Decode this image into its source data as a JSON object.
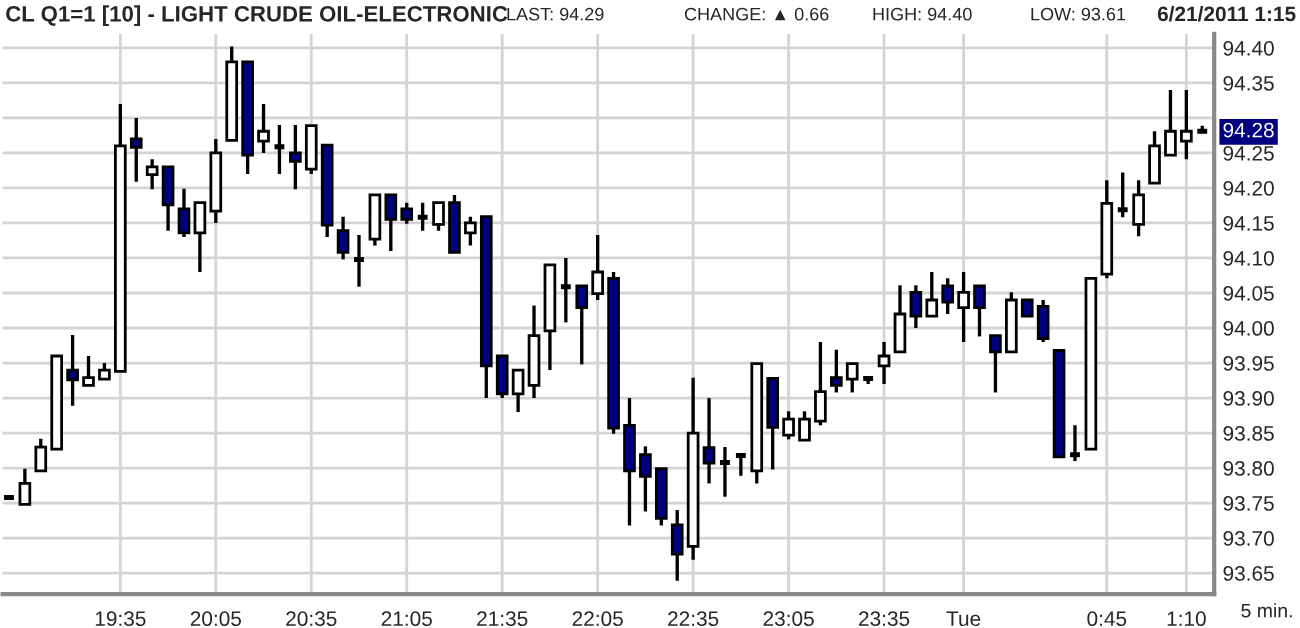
{
  "chart_data": {
    "type": "candlestick",
    "title": "CL Q1=1 [10] - LIGHT CRUDE OIL-ELECTRONIC",
    "xlabel": "5 min.",
    "annotations": [
      "LAST: 94.29",
      "CHANGE: ▲ 0.66",
      "HIGH: 94.40",
      "LOW: 93.61",
      "6/21/2011 1:15",
      {
        "text": "94.28",
        "y": 94.28
      }
    ],
    "categories": [
      null,
      null,
      null,
      null,
      null,
      null,
      null,
      "19:35",
      null,
      null,
      null,
      null,
      null,
      "20:05",
      null,
      null,
      null,
      null,
      null,
      "20:35",
      null,
      null,
      null,
      null,
      null,
      "21:05",
      null,
      null,
      null,
      null,
      null,
      "21:35",
      null,
      null,
      null,
      null,
      null,
      "22:05",
      null,
      null,
      null,
      null,
      null,
      "22:35",
      null,
      null,
      null,
      null,
      null,
      "23:05",
      null,
      null,
      null,
      null,
      null,
      "23:35",
      null,
      null,
      null,
      null,
      "Tue",
      null,
      null,
      null,
      null,
      null,
      null,
      null,
      null,
      "0:45",
      null,
      null,
      null,
      null,
      "1:10",
      null
    ],
    "ohlc": [
      [
        93.758,
        93.758,
        93.758,
        93.758
      ],
      [
        93.748,
        93.799,
        93.748,
        93.778
      ],
      [
        93.796,
        93.842,
        93.796,
        93.83
      ],
      [
        93.827,
        93.96,
        93.827,
        93.96
      ],
      [
        93.94,
        93.99,
        93.889,
        93.926
      ],
      [
        93.918,
        93.96,
        93.918,
        93.929
      ],
      [
        93.927,
        93.95,
        93.927,
        93.94
      ],
      [
        93.938,
        94.32,
        93.938,
        94.26
      ],
      [
        94.27,
        94.3,
        94.209,
        94.258
      ],
      [
        94.219,
        94.241,
        94.198,
        94.23
      ],
      [
        94.23,
        94.23,
        94.139,
        94.176
      ],
      [
        94.17,
        94.199,
        94.13,
        94.136
      ],
      [
        94.136,
        94.179,
        94.08,
        94.179
      ],
      [
        94.167,
        94.27,
        94.15,
        94.25
      ],
      [
        94.268,
        94.402,
        94.268,
        94.38
      ],
      [
        94.38,
        94.38,
        94.22,
        94.247
      ],
      [
        94.267,
        94.32,
        94.25,
        94.281
      ],
      [
        94.259,
        94.29,
        94.22,
        94.259
      ],
      [
        94.25,
        94.29,
        94.198,
        94.238
      ],
      [
        94.227,
        94.289,
        94.22,
        94.289
      ],
      [
        94.261,
        94.261,
        94.13,
        94.147
      ],
      [
        94.139,
        94.159,
        94.098,
        94.108
      ],
      [
        94.098,
        94.133,
        94.059,
        94.098
      ],
      [
        94.127,
        94.19,
        94.118,
        94.19
      ],
      [
        94.19,
        94.19,
        94.11,
        94.155
      ],
      [
        94.17,
        94.179,
        94.149,
        94.155
      ],
      [
        94.158,
        94.179,
        94.139,
        94.158
      ],
      [
        94.148,
        94.179,
        94.139,
        94.179
      ],
      [
        94.179,
        94.19,
        94.108,
        94.108
      ],
      [
        94.136,
        94.159,
        94.118,
        94.15
      ],
      [
        94.159,
        94.159,
        93.9,
        93.946
      ],
      [
        93.96,
        93.96,
        93.9,
        93.906
      ],
      [
        93.906,
        93.94,
        93.88,
        93.94
      ],
      [
        93.918,
        94.032,
        93.9,
        93.989
      ],
      [
        93.996,
        94.09,
        93.94,
        94.09
      ],
      [
        94.059,
        94.1,
        94.008,
        94.059
      ],
      [
        94.06,
        94.06,
        93.948,
        94.029
      ],
      [
        94.049,
        94.133,
        94.04,
        94.08
      ],
      [
        94.071,
        94.08,
        93.849,
        93.857
      ],
      [
        93.861,
        93.9,
        93.718,
        93.796
      ],
      [
        93.819,
        93.831,
        93.738,
        93.788
      ],
      [
        93.799,
        93.8,
        93.718,
        93.728
      ],
      [
        93.719,
        93.74,
        93.639,
        93.677
      ],
      [
        93.688,
        93.929,
        93.669,
        93.85
      ],
      [
        93.829,
        93.9,
        93.778,
        93.807
      ],
      [
        93.808,
        93.83,
        93.759,
        93.808
      ],
      [
        93.818,
        93.82,
        93.789,
        93.818
      ],
      [
        93.796,
        93.949,
        93.778,
        93.949
      ],
      [
        93.928,
        93.928,
        93.798,
        93.858
      ],
      [
        93.847,
        93.881,
        93.841,
        93.87
      ],
      [
        93.84,
        93.881,
        93.84,
        93.87
      ],
      [
        93.867,
        93.98,
        93.861,
        93.909
      ],
      [
        93.929,
        93.969,
        93.908,
        93.918
      ],
      [
        93.927,
        93.949,
        93.908,
        93.949
      ],
      [
        93.928,
        93.93,
        93.92,
        93.928
      ],
      [
        93.946,
        93.98,
        93.92,
        93.96
      ],
      [
        93.966,
        94.061,
        93.966,
        94.02
      ],
      [
        94.051,
        94.061,
        94.0,
        94.017
      ],
      [
        94.017,
        94.08,
        94.017,
        94.04
      ],
      [
        94.06,
        94.071,
        94.02,
        94.037
      ],
      [
        94.029,
        94.08,
        93.98,
        94.051
      ],
      [
        94.06,
        94.06,
        93.988,
        94.029
      ],
      [
        93.989,
        93.989,
        93.908,
        93.966
      ],
      [
        93.966,
        94.051,
        93.966,
        94.04
      ],
      [
        94.04,
        94.04,
        94.017,
        94.017
      ],
      [
        94.031,
        94.04,
        93.98,
        93.985
      ],
      [
        93.968,
        93.968,
        93.816,
        93.816
      ],
      [
        93.819,
        93.861,
        93.81,
        93.819
      ],
      [
        93.827,
        94.071,
        93.827,
        94.071
      ],
      [
        94.077,
        94.211,
        94.071,
        94.178
      ],
      [
        94.169,
        94.222,
        94.158,
        94.169
      ],
      [
        94.148,
        94.211,
        94.131,
        94.19
      ],
      [
        94.207,
        94.281,
        94.207,
        94.26
      ],
      [
        94.247,
        94.34,
        94.247,
        94.281
      ],
      [
        94.267,
        94.34,
        94.241,
        94.281
      ],
      [
        94.281,
        94.289,
        94.281,
        94.281
      ]
    ],
    "colors": [
      "#000000",
      "#ffffff",
      "#ffffff",
      "#ffffff",
      "#000080",
      "#ffffff",
      "#ffffff",
      "#ffffff",
      "#000080",
      "#ffffff",
      "#000080",
      "#000080",
      "#ffffff",
      "#ffffff",
      "#ffffff",
      "#000080",
      "#ffffff",
      "#000000",
      "#000080",
      "#ffffff",
      "#000080",
      "#000080",
      "#000000",
      "#ffffff",
      "#000080",
      "#000080",
      "#000000",
      "#ffffff",
      "#000080",
      "#ffffff",
      "#000080",
      "#000080",
      "#ffffff",
      "#ffffff",
      "#ffffff",
      "#000000",
      "#000080",
      "#ffffff",
      "#000080",
      "#000080",
      "#000080",
      "#000080",
      "#000080",
      "#ffffff",
      "#000080",
      "#000000",
      "#000000",
      "#ffffff",
      "#000080",
      "#ffffff",
      "#ffffff",
      "#ffffff",
      "#000080",
      "#ffffff",
      "#000000",
      "#ffffff",
      "#ffffff",
      "#000080",
      "#ffffff",
      "#000080",
      "#ffffff",
      "#000080",
      "#000080",
      "#ffffff",
      "#000080",
      "#000080",
      "#000080",
      "#000000",
      "#ffffff",
      "#ffffff",
      "#000000",
      "#ffffff",
      "#ffffff",
      "#ffffff",
      "#ffffff",
      "#000000"
    ],
    "ylim": [
      93.62,
      94.42
    ],
    "yticks": [
      {
        "value": 93.65,
        "label": "93.65"
      },
      {
        "value": 93.7,
        "label": "93.70"
      },
      {
        "value": 93.75,
        "label": "93.75"
      },
      {
        "value": 93.8,
        "label": "93.80"
      },
      {
        "value": 93.85,
        "label": "93.85"
      },
      {
        "value": 93.9,
        "label": "93.90"
      },
      {
        "value": 93.95,
        "label": "93.95"
      },
      {
        "value": 94.0,
        "label": "94.00"
      },
      {
        "value": 94.05,
        "label": "94.05"
      },
      {
        "value": 94.1,
        "label": "94.10"
      },
      {
        "value": 94.15,
        "label": "94.15"
      },
      {
        "value": 94.2,
        "label": "94.20"
      },
      {
        "value": 94.25,
        "label": "94.25"
      },
      {
        "value": 94.3,
        "label": null
      },
      {
        "value": 94.35,
        "label": "94.35"
      },
      {
        "value": 94.4,
        "label": "94.40"
      }
    ],
    "grid": true
  }
}
